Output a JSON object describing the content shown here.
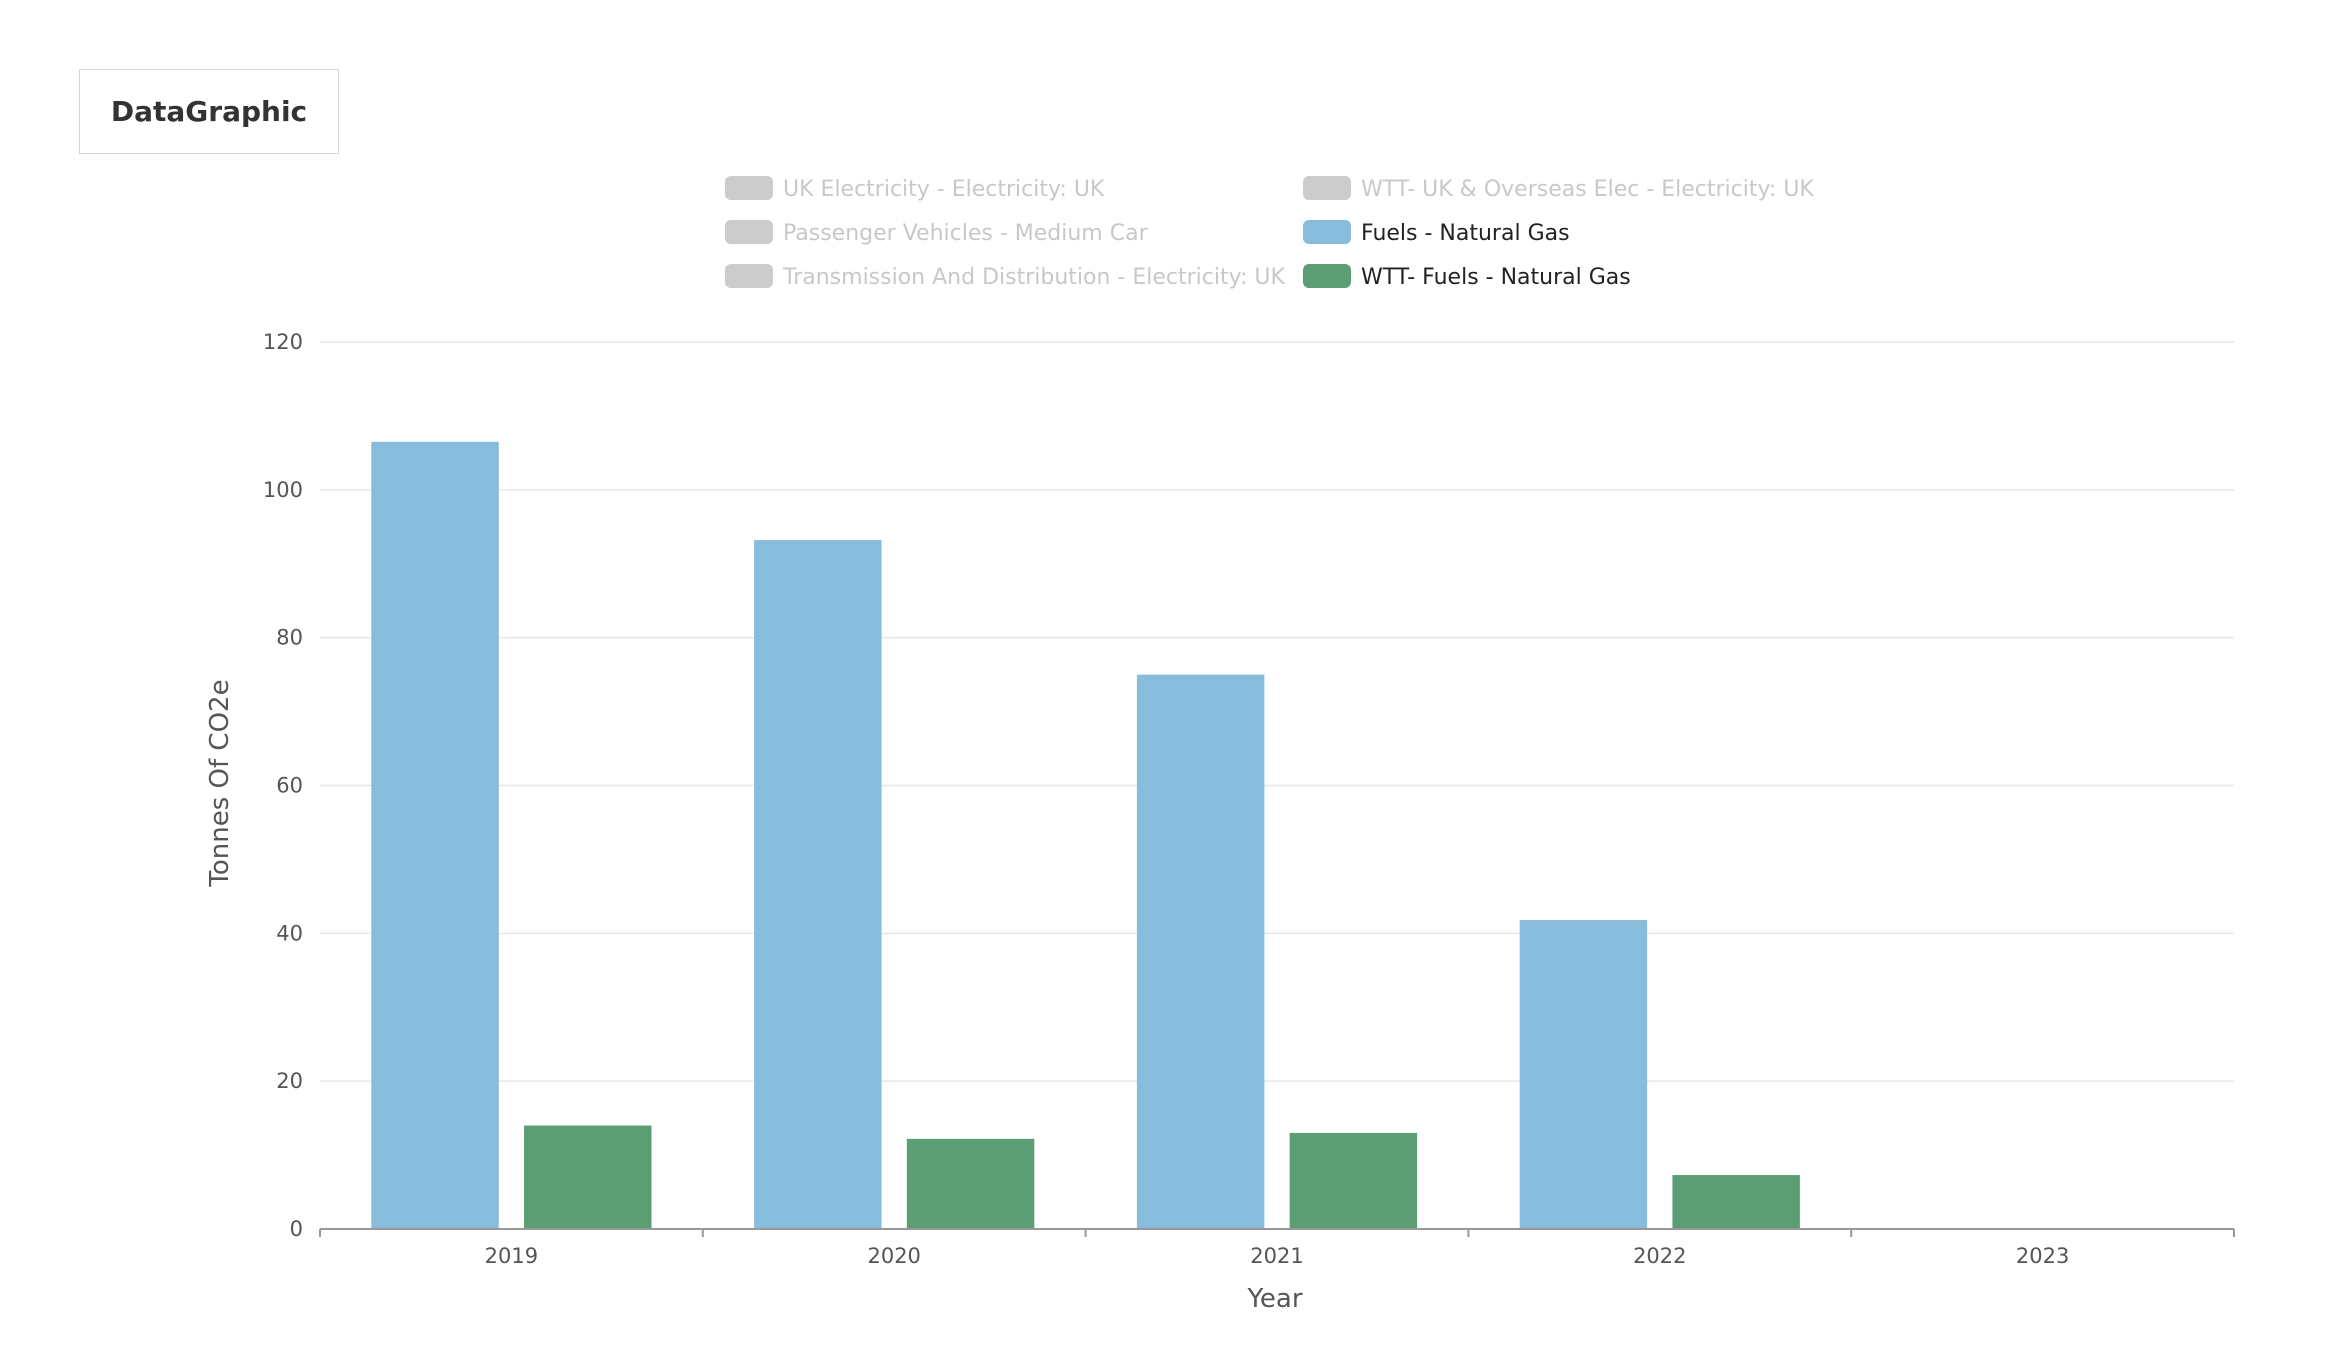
{
  "app": {
    "tab_label": "DataGraphic"
  },
  "colors": {
    "inactive": "#cccccc",
    "inactive_text": "#c8c8c8",
    "active_text": "#222222",
    "grid": "#e6e6e6",
    "axis": "#999999"
  },
  "chart_data": {
    "type": "bar",
    "title": "",
    "xlabel": "Year",
    "ylabel": "Tonnes Of CO2e",
    "categories": [
      "2019",
      "2020",
      "2021",
      "2022",
      "2023"
    ],
    "ylim": [
      0,
      120
    ],
    "yticks": [
      0,
      20,
      40,
      60,
      80,
      100,
      120
    ],
    "grid": true,
    "legend_position": "top",
    "legend": [
      {
        "name": "UK Electricity - Electricity: UK",
        "color": "#cccccc",
        "active": false
      },
      {
        "name": "WTT- UK & Overseas Elec - Electricity: UK",
        "color": "#cccccc",
        "active": false
      },
      {
        "name": "Passenger Vehicles - Medium Car",
        "color": "#cccccc",
        "active": false
      },
      {
        "name": "Fuels - Natural Gas",
        "color": "#87bcdc",
        "active": true
      },
      {
        "name": "Transmission And Distribution - Electricity: UK",
        "color": "#cccccc",
        "active": false
      },
      {
        "name": "WTT- Fuels - Natural Gas",
        "color": "#5b9e74",
        "active": true
      }
    ],
    "series": [
      {
        "name": "Fuels - Natural Gas",
        "color": "#87bcdc",
        "values": [
          106.5,
          93.2,
          75.0,
          41.8,
          0
        ]
      },
      {
        "name": "WTT- Fuels - Natural Gas",
        "color": "#5b9e74",
        "values": [
          14.0,
          12.2,
          13.0,
          7.3,
          0
        ]
      }
    ]
  }
}
